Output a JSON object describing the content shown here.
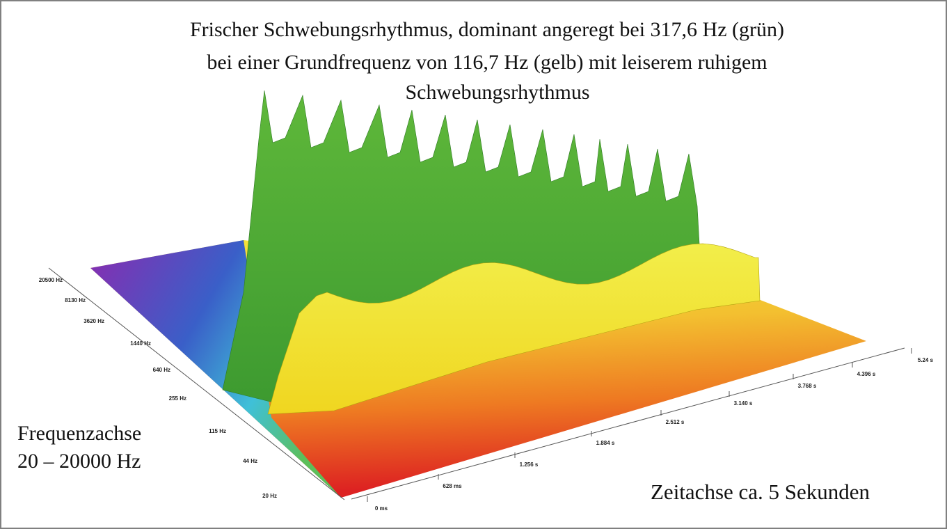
{
  "title": [
    "Frischer Schwebungsrhythmus, dominant angeregt bei 317,6 Hz (grün)",
    "bei einer Grundfrequenz von 116,7 Hz (gelb) mit leiserem ruhigem",
    "Schwebungsrhythmus"
  ],
  "frequency_axis": {
    "label": [
      "Frequenzachse",
      "20 – 20000 Hz"
    ],
    "ticks": [
      "20500 Hz",
      "8130 Hz",
      "3620 Hz",
      "1440 Hz",
      "640 Hz",
      "255 Hz",
      "115 Hz",
      "44 Hz",
      "20 Hz"
    ]
  },
  "time_axis": {
    "label": "Zeitachse ca. 5 Sekunden",
    "ticks": [
      "0 ms",
      "628 ms",
      "1.256 s",
      "1.884 s",
      "2.512 s",
      "3.140 s",
      "3.768 s",
      "4.396 s",
      "5.24 s"
    ]
  }
}
